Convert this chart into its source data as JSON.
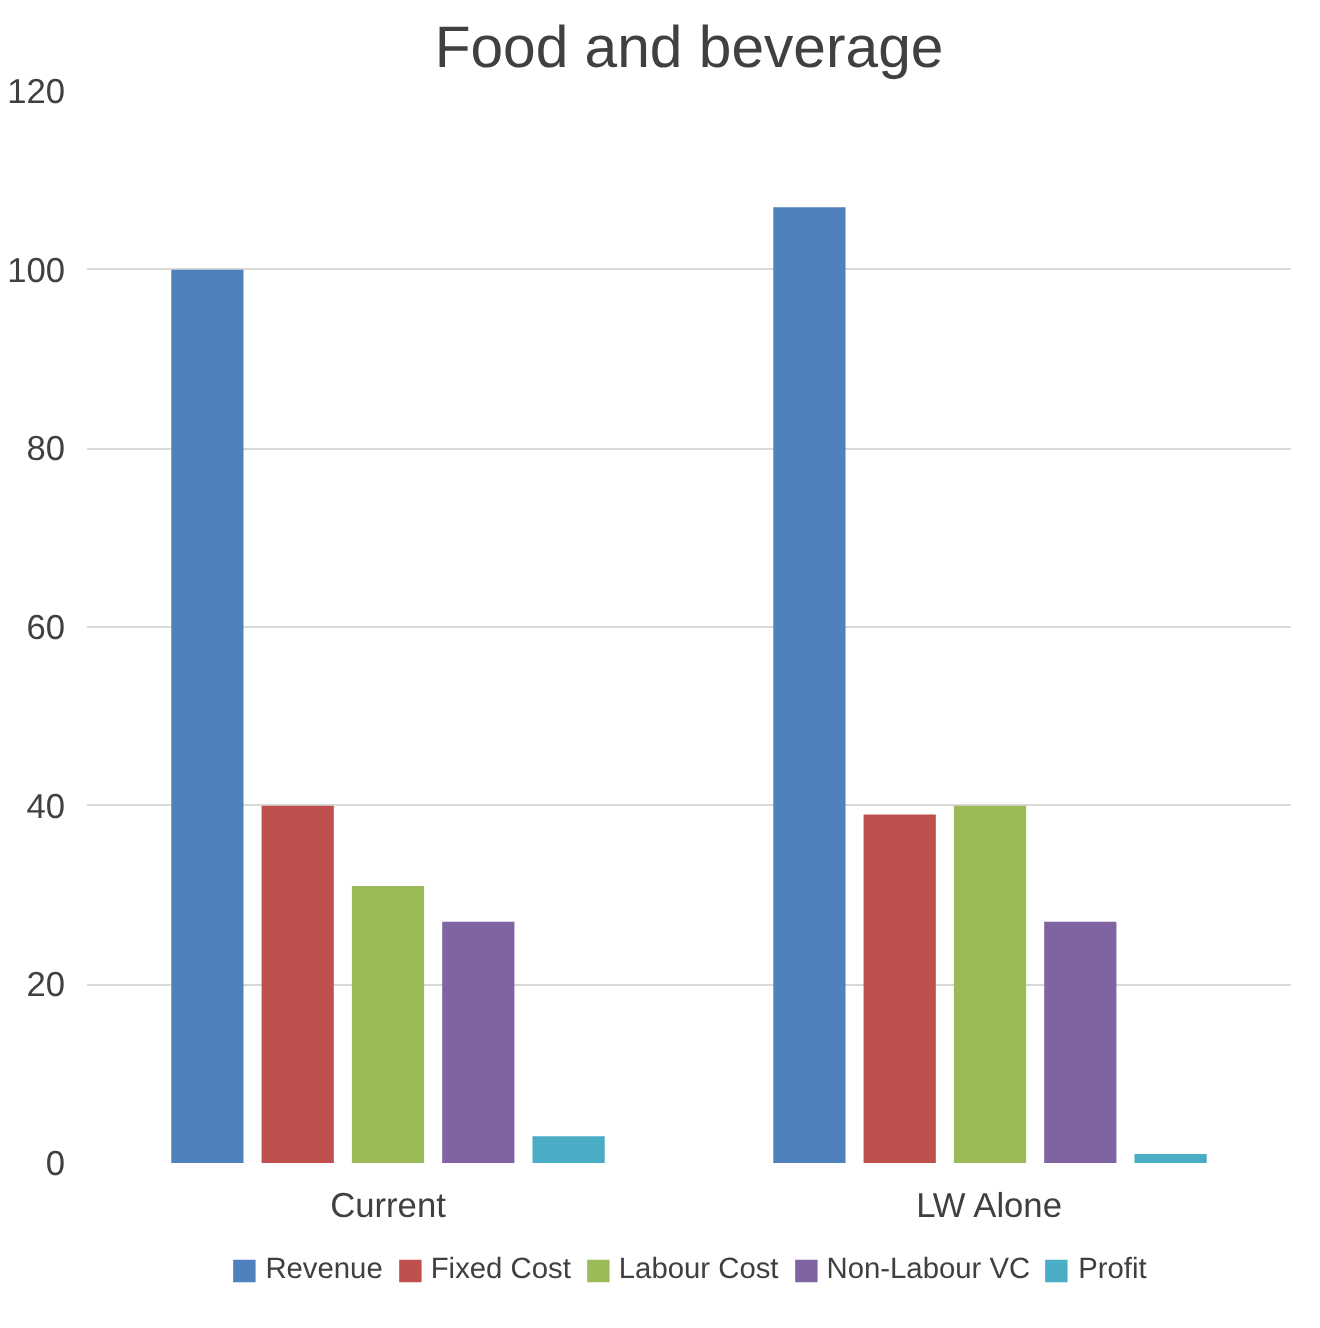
{
  "chart_data": {
    "type": "bar",
    "title": "Food and beverage",
    "categories": [
      "Current",
      "LW Alone"
    ],
    "series": [
      {
        "name": "Revenue",
        "color": "#4f81bd",
        "values": [
          100,
          107
        ]
      },
      {
        "name": "Fixed Cost",
        "color": "#c0504d",
        "values": [
          40,
          39
        ]
      },
      {
        "name": "Labour Cost",
        "color": "#9bbb59",
        "values": [
          31,
          40
        ]
      },
      {
        "name": "Non-Labour VC",
        "color": "#8064a2",
        "values": [
          27,
          27
        ]
      },
      {
        "name": "Profit",
        "color": "#4bacc6",
        "values": [
          3,
          1
        ]
      }
    ],
    "ylim": [
      0,
      120
    ],
    "yticks": [
      0,
      20,
      40,
      60,
      80,
      100,
      120
    ],
    "grid": "y",
    "legend": "bottom"
  }
}
